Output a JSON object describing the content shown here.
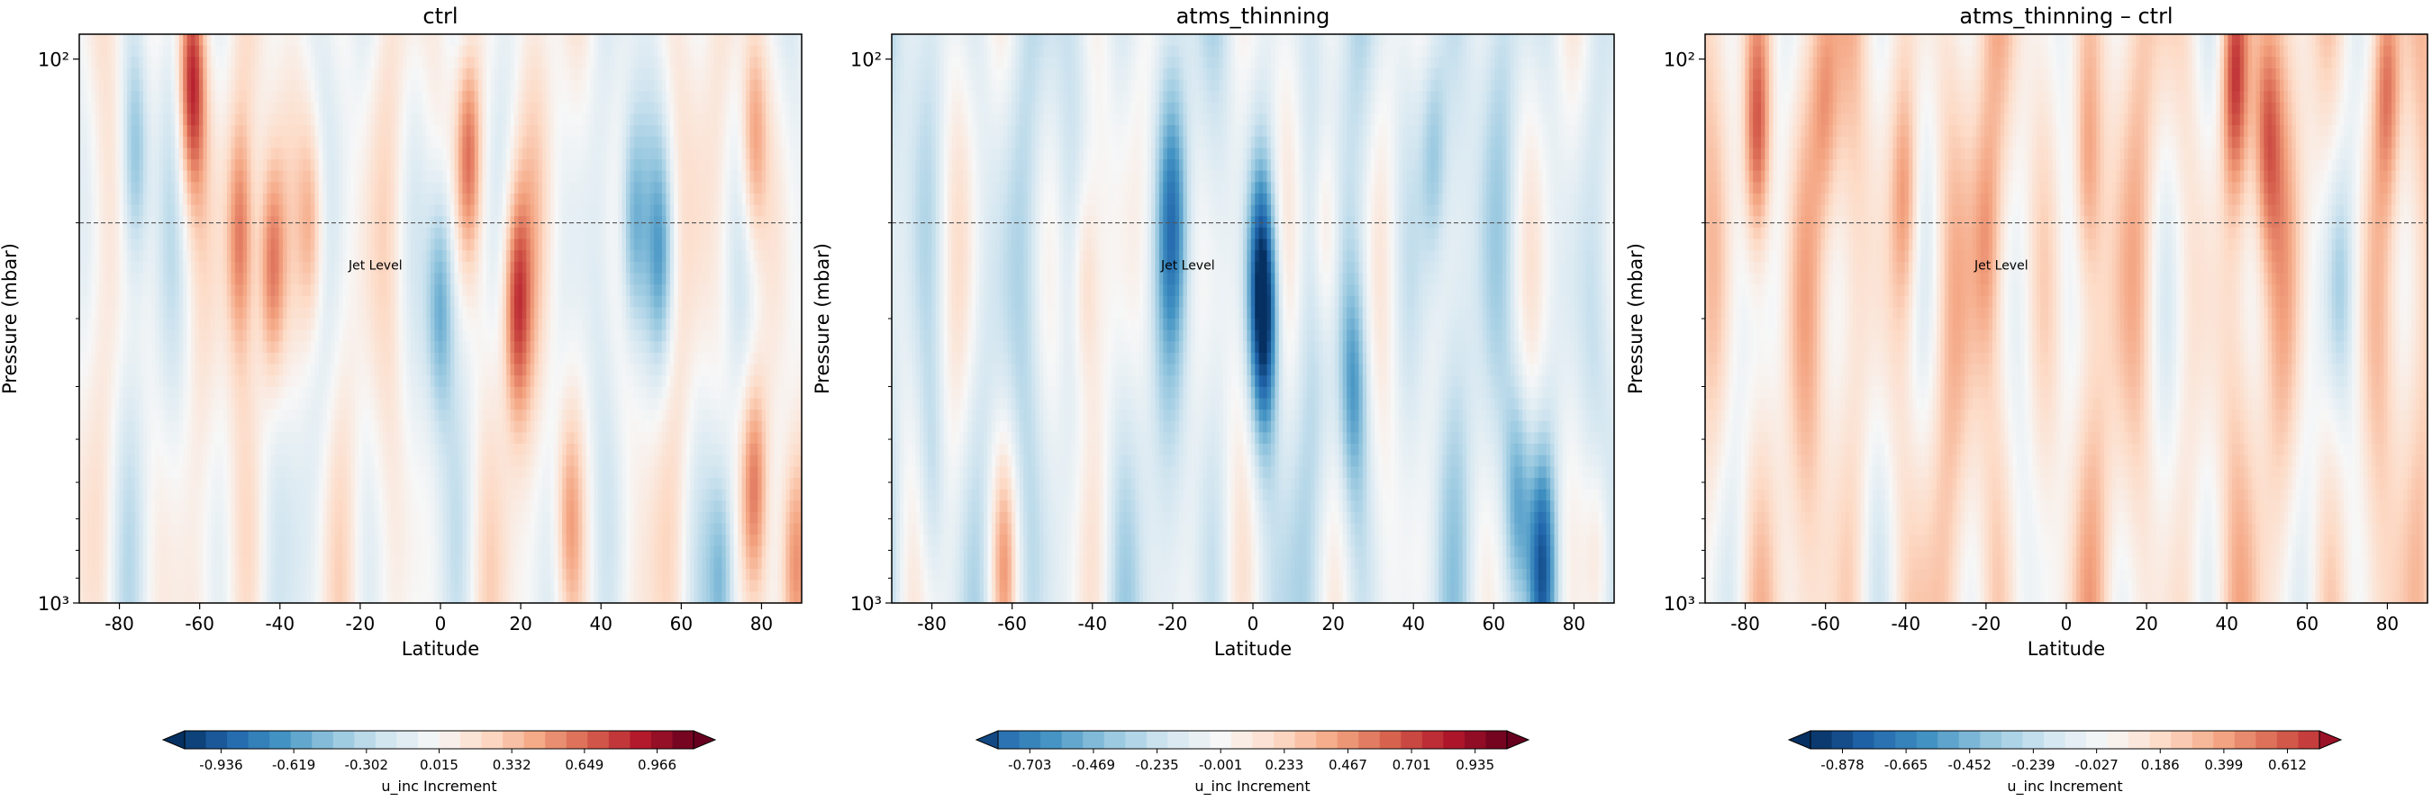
{
  "figure": {
    "panels": [
      {
        "title": "ctrl",
        "ylabel": "Pressure (mbar)",
        "xlabel": "Latitude"
      },
      {
        "title": "atms_thinning",
        "ylabel": "Pressure (mbar)",
        "xlabel": "Latitude"
      },
      {
        "title": "atms_thinning – ctrl",
        "ylabel": "Pressure (mbar)",
        "xlabel": "Latitude"
      }
    ],
    "annotation": "Jet Level",
    "colorbar_label": "u_inc Increment"
  },
  "chart_data": [
    {
      "type": "heatmap",
      "title": "ctrl",
      "xlabel": "Latitude",
      "ylabel": "Pressure (mbar)",
      "xlim": [
        -90,
        90
      ],
      "xticks": [
        -80,
        -60,
        -40,
        -20,
        0,
        20,
        40,
        60,
        80
      ],
      "yscale": "log",
      "yaxis_inverted": true,
      "ylim": [
        1000,
        90
      ],
      "yticks": [
        {
          "value": 100,
          "label": "10²"
        },
        {
          "value": 1000,
          "label": "10³"
        }
      ],
      "colormap": "RdBu_r",
      "diverging": true,
      "data_top_pressure": 90,
      "jet_level_pressure": 200,
      "annotation": "Jet Level",
      "colorbar": {
        "label": "u_inc Increment",
        "min": -1.095,
        "max": 1.125,
        "ticks": [
          -0.936,
          -0.619,
          -0.302,
          0.015,
          0.332,
          0.649,
          0.966
        ],
        "extend": "both"
      },
      "bias": 0.0,
      "anomalies": [
        {
          "lat": -76,
          "p": 150,
          "v": -0.5
        },
        {
          "lat": -62,
          "p": 110,
          "v": 0.9
        },
        {
          "lat": -50,
          "p": 210,
          "v": 0.55
        },
        {
          "lat": -42,
          "p": 240,
          "v": 0.65
        },
        {
          "lat": -32,
          "p": 200,
          "v": 0.5
        },
        {
          "lat": 0,
          "p": 280,
          "v": -0.6
        },
        {
          "lat": 7,
          "p": 150,
          "v": 0.7
        },
        {
          "lat": 19,
          "p": 280,
          "v": 0.75
        },
        {
          "lat": 32,
          "p": 700,
          "v": 0.4
        },
        {
          "lat": 48,
          "p": 200,
          "v": -0.55
        },
        {
          "lat": 55,
          "p": 230,
          "v": -0.5
        },
        {
          "lat": 70,
          "p": 900,
          "v": -0.5
        },
        {
          "lat": 78,
          "p": 600,
          "v": 0.65
        },
        {
          "lat": 78,
          "p": 140,
          "v": 0.6
        },
        {
          "lat": 88,
          "p": 850,
          "v": 0.55
        }
      ]
    },
    {
      "type": "heatmap",
      "title": "atms_thinning",
      "xlabel": "Latitude",
      "ylabel": "Pressure (mbar)",
      "xlim": [
        -90,
        90
      ],
      "xticks": [
        -80,
        -60,
        -40,
        -20,
        0,
        20,
        40,
        60,
        80
      ],
      "yscale": "log",
      "yaxis_inverted": true,
      "ylim": [
        1000,
        90
      ],
      "yticks": [
        {
          "value": 100,
          "label": "10²"
        },
        {
          "value": 1000,
          "label": "10³"
        }
      ],
      "colormap": "RdBu_r",
      "diverging": true,
      "data_top_pressure": 90,
      "jet_level_pressure": 200,
      "annotation": "Jet Level",
      "colorbar": {
        "label": "u_inc Increment",
        "min": -0.82,
        "max": 1.052,
        "ticks": [
          -0.703,
          -0.469,
          -0.235,
          -0.001,
          0.233,
          0.467,
          0.701,
          0.935
        ],
        "extend": "both"
      },
      "bias": -0.12,
      "anomalies": [
        {
          "lat": -80,
          "p": 600,
          "v": -0.2
        },
        {
          "lat": -62,
          "p": 850,
          "v": 0.45
        },
        {
          "lat": -42,
          "p": 250,
          "v": 0.35
        },
        {
          "lat": -20,
          "p": 200,
          "v": -0.4
        },
        {
          "lat": 2,
          "p": 250,
          "v": -0.6
        },
        {
          "lat": 3,
          "p": 320,
          "v": -0.55
        },
        {
          "lat": 18,
          "p": 210,
          "v": 0.4
        },
        {
          "lat": 25,
          "p": 400,
          "v": -0.45
        },
        {
          "lat": 45,
          "p": 150,
          "v": -0.4
        },
        {
          "lat": 66,
          "p": 650,
          "v": -0.5
        },
        {
          "lat": 72,
          "p": 850,
          "v": -0.7
        },
        {
          "lat": 86,
          "p": 850,
          "v": 0.4
        }
      ]
    },
    {
      "type": "heatmap",
      "title": "atms_thinning – ctrl",
      "xlabel": "Latitude",
      "ylabel": "Pressure (mbar)",
      "xlim": [
        -90,
        90
      ],
      "xticks": [
        -80,
        -60,
        -40,
        -20,
        0,
        20,
        40,
        60,
        80
      ],
      "yscale": "log",
      "yaxis_inverted": true,
      "ylim": [
        1000,
        90
      ],
      "yticks": [
        {
          "value": 100,
          "label": "10²"
        },
        {
          "value": 1000,
          "label": "10³"
        }
      ],
      "colormap": "RdBu_r",
      "diverging": true,
      "data_top_pressure": 90,
      "jet_level_pressure": 200,
      "annotation": "Jet Level",
      "colorbar": {
        "label": "u_inc Increment",
        "min": -0.985,
        "max": 0.719,
        "ticks": [
          -0.878,
          -0.665,
          -0.452,
          -0.239,
          -0.027,
          0.186,
          0.399,
          0.612
        ],
        "extend": "both"
      },
      "bias": 0.12,
      "anomalies": [
        {
          "lat": -77,
          "p": 140,
          "v": 0.55
        },
        {
          "lat": -60,
          "p": 120,
          "v": 0.3
        },
        {
          "lat": -40,
          "p": 180,
          "v": 0.35
        },
        {
          "lat": -20,
          "p": 220,
          "v": 0.25
        },
        {
          "lat": 5,
          "p": 160,
          "v": 0.3
        },
        {
          "lat": 42,
          "p": 110,
          "v": 0.55
        },
        {
          "lat": 50,
          "p": 140,
          "v": 0.45
        },
        {
          "lat": 68,
          "p": 260,
          "v": -0.25
        },
        {
          "lat": 80,
          "p": 110,
          "v": 0.45
        }
      ]
    }
  ]
}
